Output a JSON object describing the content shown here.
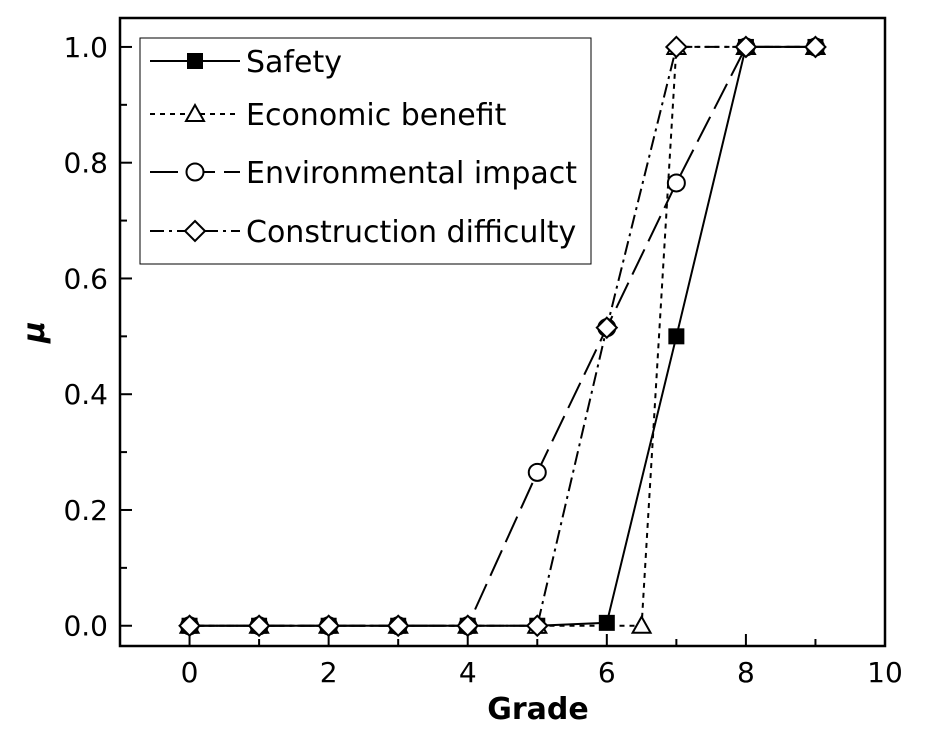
{
  "chart_data": {
    "type": "line",
    "title": "",
    "xlabel": "Grade",
    "ylabel": "μ",
    "xlim": [
      -1,
      10
    ],
    "ylim": [
      -0.035,
      1.05
    ],
    "x_ticks": [
      0,
      2,
      4,
      6,
      8,
      10
    ],
    "y_ticks": [
      0.0,
      0.2,
      0.4,
      0.6,
      0.8,
      1.0
    ],
    "x_tick_labels": [
      "0",
      "2",
      "4",
      "6",
      "8",
      "10"
    ],
    "y_tick_labels": [
      "0.0",
      "0.2",
      "0.4",
      "0.6",
      "0.8",
      "1.0"
    ],
    "grid": false,
    "legend_position": "top-left",
    "series": [
      {
        "name": "Safety",
        "line_style": "solid",
        "marker": "filled-square",
        "points": [
          [
            0,
            0
          ],
          [
            1,
            0
          ],
          [
            2,
            0
          ],
          [
            3,
            0
          ],
          [
            4,
            0
          ],
          [
            5,
            0
          ],
          [
            6,
            0.005
          ],
          [
            7,
            0.5
          ],
          [
            8,
            1.0
          ],
          [
            9,
            1.0
          ]
        ]
      },
      {
        "name": "Economic benefit",
        "line_style": "dotted",
        "marker": "open-triangle",
        "points": [
          [
            0,
            0
          ],
          [
            1,
            0
          ],
          [
            2,
            0
          ],
          [
            3,
            0
          ],
          [
            4,
            0
          ],
          [
            5,
            0
          ],
          [
            6.5,
            0
          ],
          [
            7,
            1.0
          ],
          [
            8,
            1.0
          ],
          [
            9,
            1.0
          ]
        ]
      },
      {
        "name": "Environmental impact",
        "line_style": "long-dash",
        "marker": "open-circle",
        "points": [
          [
            0,
            0
          ],
          [
            1,
            0
          ],
          [
            2,
            0
          ],
          [
            3,
            0
          ],
          [
            4,
            0
          ],
          [
            5,
            0.265
          ],
          [
            6,
            0.515
          ],
          [
            7,
            0.765
          ],
          [
            8,
            1.0
          ],
          [
            9,
            1.0
          ]
        ]
      },
      {
        "name": "Construction difficulty",
        "line_style": "dash-dot",
        "marker": "open-diamond",
        "points": [
          [
            0,
            0
          ],
          [
            1,
            0
          ],
          [
            2,
            0
          ],
          [
            3,
            0
          ],
          [
            4,
            0
          ],
          [
            5,
            0
          ],
          [
            6,
            0.515
          ],
          [
            7,
            1.0
          ],
          [
            8,
            1.0
          ],
          [
            9,
            1.0
          ]
        ]
      }
    ]
  }
}
